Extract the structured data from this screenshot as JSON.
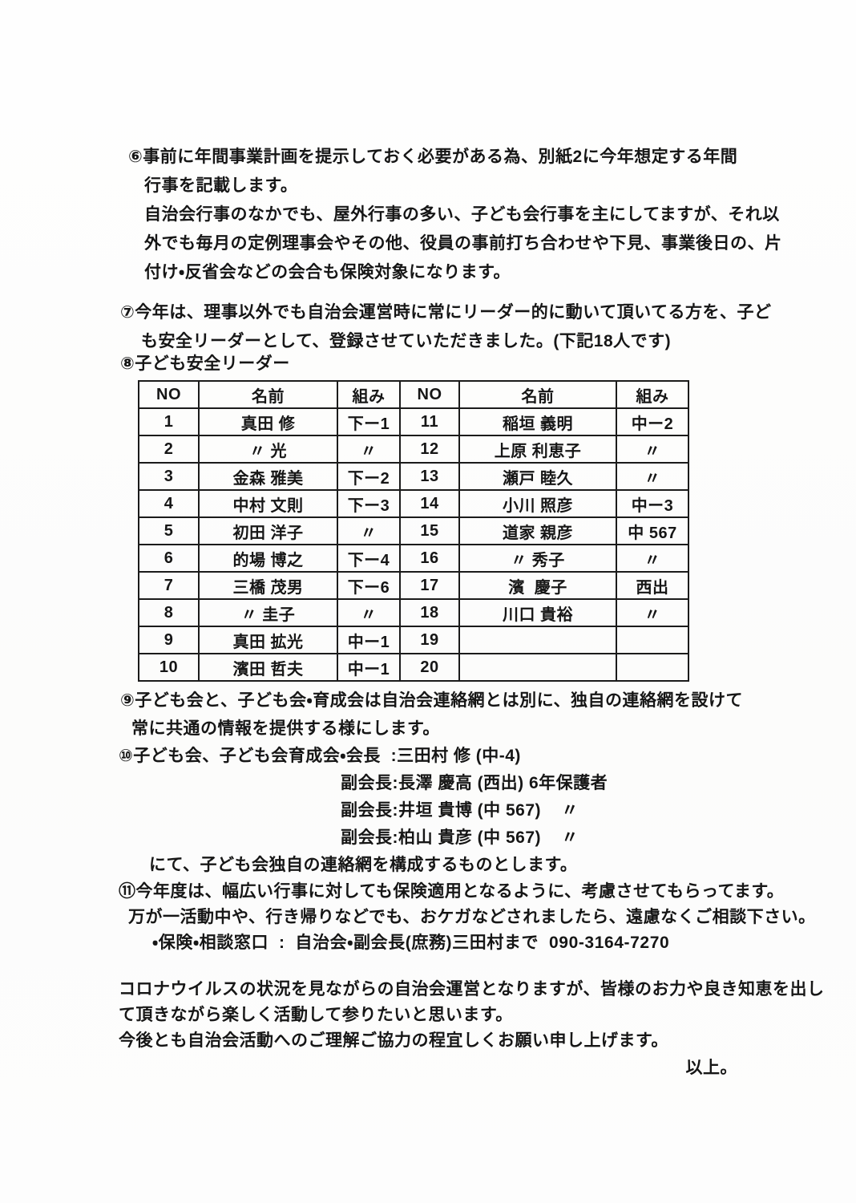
{
  "section6": {
    "lines": [
      "⑥事前に年間事業計画を提示しておく必要がある為、別紙2に今年想定する年間",
      "行事を記載します。",
      "自治会行事のなかでも、屋外行事の多い、子ども会行事を主にしてますが、それ以",
      "外でも毎月の定例理事会やその他、役員の事前打ち合わせや下見、事業後日の、片",
      "付け・反省会などの会合も保険対象になります。"
    ]
  },
  "section7": {
    "lines": [
      "⑦今年は、理事以外でも自治会運営時に常にリーダー的に動いて頂いてる方を、子ど",
      "も安全リーダーとして、登録させていただきました。(下記18人です)"
    ]
  },
  "section8": {
    "heading": "⑧子ども安全リーダー",
    "table": {
      "headers": [
        "NO",
        "名前",
        "組み",
        "NO",
        "名前",
        "組み"
      ],
      "rows": [
        [
          "1",
          "真田 修",
          "下ー1",
          "11",
          "稲垣 義明",
          "中ー2"
        ],
        [
          "2",
          "〃 光",
          "〃",
          "12",
          "上原 利恵子",
          "〃"
        ],
        [
          "3",
          "金森 雅美",
          "下ー2",
          "13",
          "瀬戸 睦久",
          "〃"
        ],
        [
          "4",
          "中村 文則",
          "下ー3",
          "14",
          "小川 照彦",
          "中ー3"
        ],
        [
          "5",
          "初田 洋子",
          "〃",
          "15",
          "道家 親彦",
          "中 567"
        ],
        [
          "6",
          "的場 博之",
          "下ー4",
          "16",
          "〃 秀子",
          "〃"
        ],
        [
          "7",
          "三橋 茂男",
          "下ー6",
          "17",
          "濱  慶子",
          "西出"
        ],
        [
          "8",
          "〃 圭子",
          "〃",
          "18",
          "川口 貴裕",
          "〃"
        ],
        [
          "9",
          "真田 拡光",
          "中ー1",
          "19",
          "",
          ""
        ],
        [
          "10",
          "濱田 哲夫",
          "中ー1",
          "20",
          "",
          ""
        ]
      ]
    }
  },
  "section9": {
    "lines": [
      "⑨子ども会と、子ども会・育成会は自治会連絡網とは別に、独自の連絡網を設けて",
      "常に共通の情報を提供する様にします。"
    ]
  },
  "section10": {
    "chair_line": "⑩子ども会、子ども会育成会・会長  :三田村 修 (中-4)",
    "vice_lines": [
      "副会長:長澤 慶高 (西出) 6年保護者",
      "副会長:井垣 貴博 (中 567)    〃",
      "副会長:柏山 貴彦 (中 567)    〃"
    ],
    "closing_line": "にて、子ども会独自の連絡網を構成するものとします。"
  },
  "section11": {
    "lines": [
      "⑪今年度は、幅広い行事に対しても保険適用となるように、考慮させてもらってます。",
      "万が一活動中や、行き帰りなどでも、おケガなどされましたら、遠慮なくご相談下さい。"
    ],
    "contact_line": "・保険・相談窓口  :  自治会・副会長(庶務)三田村まで  090-3164-7270"
  },
  "closing": {
    "lines": [
      "コロナウイルスの状況を見ながらの自治会運営となりますが、皆様のお力や良き知恵を出し",
      "て頂きながら楽しく活動して参りたいと思います。",
      "今後とも自治会活動へのご理解ご協力の程宜しくお願い申し上げます。"
    ],
    "sign_off": "以上。"
  }
}
